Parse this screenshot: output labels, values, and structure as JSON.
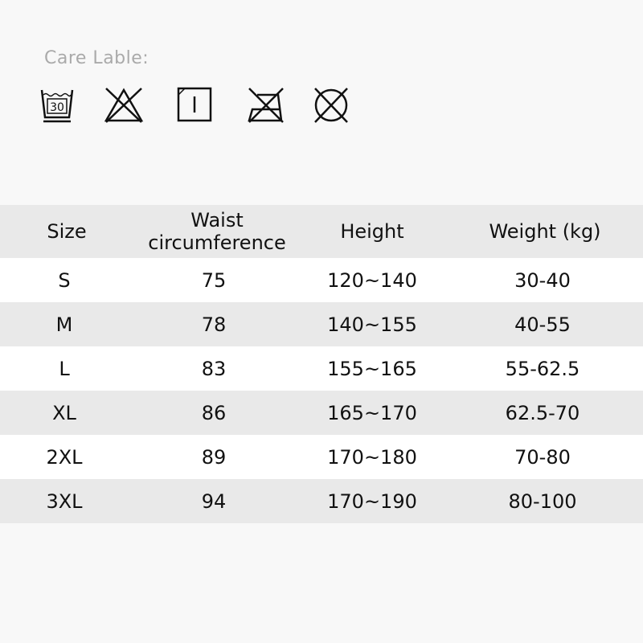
{
  "care_label": "Care Lable:",
  "care_icons": [
    "wash-30-icon",
    "no-bleach-icon",
    "tumble-dry-icon",
    "no-iron-icon",
    "no-dry-clean-icon"
  ],
  "wash_temp": "30",
  "table": {
    "headers": [
      "Size",
      "Waist\ncircumference",
      "Height",
      "Weight (kg)"
    ],
    "header_waist_1": "Waist",
    "header_waist_2": "circumference",
    "rows": [
      [
        "S",
        "75",
        "120~140",
        "30-40"
      ],
      [
        "M",
        "78",
        "140~155",
        "40-55"
      ],
      [
        "L",
        "83",
        "155~165",
        "55-62.5"
      ],
      [
        "XL",
        "86",
        "165~170",
        "62.5-70"
      ],
      [
        "2XL",
        "89",
        "170~180",
        "70-80"
      ],
      [
        "3XL",
        "94",
        "170~190",
        "80-100"
      ]
    ]
  }
}
